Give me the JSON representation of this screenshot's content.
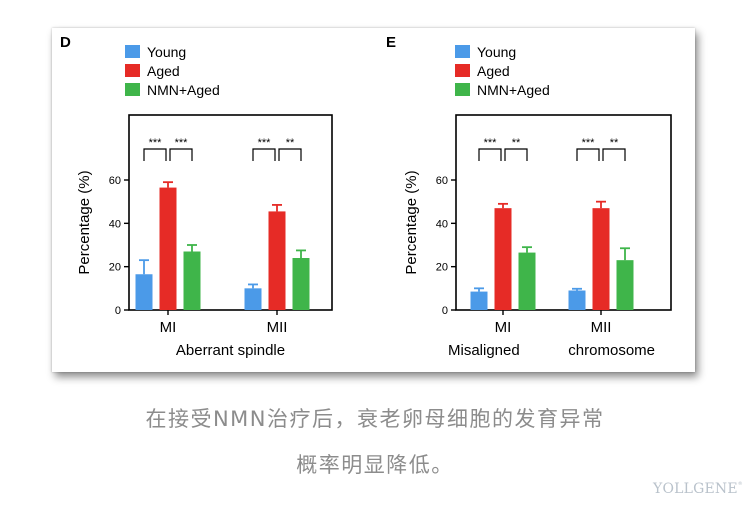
{
  "chart_data": [
    {
      "type": "bar",
      "panel_label": "D",
      "categories": [
        "MI",
        "MII"
      ],
      "series": [
        {
          "name": "Young",
          "values": [
            16.5,
            10
          ],
          "errors": [
            6.5,
            1.8
          ],
          "color": "#4b9ae8"
        },
        {
          "name": "Aged",
          "values": [
            56.5,
            45.5
          ],
          "errors": [
            2.5,
            3
          ],
          "color": "#e62b26"
        },
        {
          "name": "NMN+Aged",
          "values": [
            27,
            24
          ],
          "errors": [
            3,
            3.5
          ],
          "color": "#3fb54a"
        }
      ],
      "significance": [
        [
          "***",
          "***"
        ],
        [
          "***",
          "**"
        ]
      ],
      "xlabel": "Aberrant spindle",
      "ylabel": "Percentage (%)",
      "yticks": [
        0,
        20,
        40,
        60
      ],
      "ylim": [
        0,
        90
      ],
      "legend_position": "top-left"
    },
    {
      "type": "bar",
      "panel_label": "E",
      "categories": [
        "MI",
        "MII"
      ],
      "series": [
        {
          "name": "Young",
          "values": [
            8.5,
            9
          ],
          "errors": [
            1.5,
            0.8
          ],
          "color": "#4b9ae8"
        },
        {
          "name": "Aged",
          "values": [
            47,
            47
          ],
          "errors": [
            2,
            3
          ],
          "color": "#e62b26"
        },
        {
          "name": "NMN+Aged",
          "values": [
            26.5,
            23
          ],
          "errors": [
            2.5,
            5.5
          ],
          "color": "#3fb54a"
        }
      ],
      "significance": [
        [
          "***",
          "**"
        ],
        [
          "***",
          "**"
        ]
      ],
      "xlabel_parts": [
        "Misaligned",
        "chromosome"
      ],
      "ylabel": "Percentage (%)",
      "yticks": [
        0,
        20,
        40,
        60
      ],
      "ylim": [
        0,
        90
      ],
      "legend_position": "top-left"
    }
  ],
  "caption": {
    "line1": "在接受NMN治疗后，衰老卵母细胞的发育异常",
    "line2": "概率明显降低。"
  },
  "watermark": {
    "text": "YOLLGENE",
    "mark": "®"
  }
}
